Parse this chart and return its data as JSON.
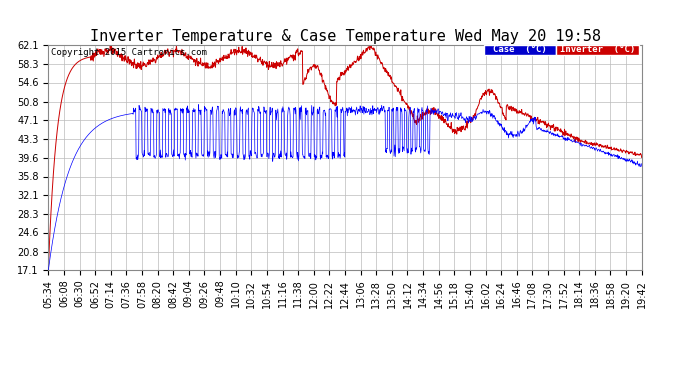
{
  "title": "Inverter Temperature & Case Temperature Wed May 20 19:58",
  "copyright": "Copyright 2015 Cartronics.com",
  "legend_case_label": "Case  (°C)",
  "legend_inverter_label": "Inverter  (°C)",
  "case_color": "#0000ff",
  "inverter_color": "#cc0000",
  "legend_case_bg": "#0000cc",
  "legend_inverter_bg": "#cc0000",
  "yticks": [
    17.1,
    20.8,
    24.6,
    28.3,
    32.1,
    35.8,
    39.6,
    43.3,
    47.1,
    50.8,
    54.6,
    58.3,
    62.1
  ],
  "ymin": 17.1,
  "ymax": 62.1,
  "bg_color": "#ffffff",
  "plot_bg_color": "#ffffff",
  "grid_color": "#bbbbbb",
  "title_fontsize": 11,
  "tick_fontsize": 7,
  "xtick_labels": [
    "05:34",
    "06:08",
    "06:30",
    "06:52",
    "07:14",
    "07:36",
    "07:58",
    "08:20",
    "08:42",
    "09:04",
    "09:26",
    "09:48",
    "10:10",
    "10:32",
    "10:54",
    "11:16",
    "11:38",
    "12:00",
    "12:22",
    "12:44",
    "13:06",
    "13:28",
    "13:50",
    "14:12",
    "14:34",
    "14:56",
    "15:18",
    "15:40",
    "16:02",
    "16:24",
    "16:46",
    "17:08",
    "17:30",
    "17:52",
    "18:14",
    "18:36",
    "18:58",
    "19:20",
    "19:42"
  ]
}
